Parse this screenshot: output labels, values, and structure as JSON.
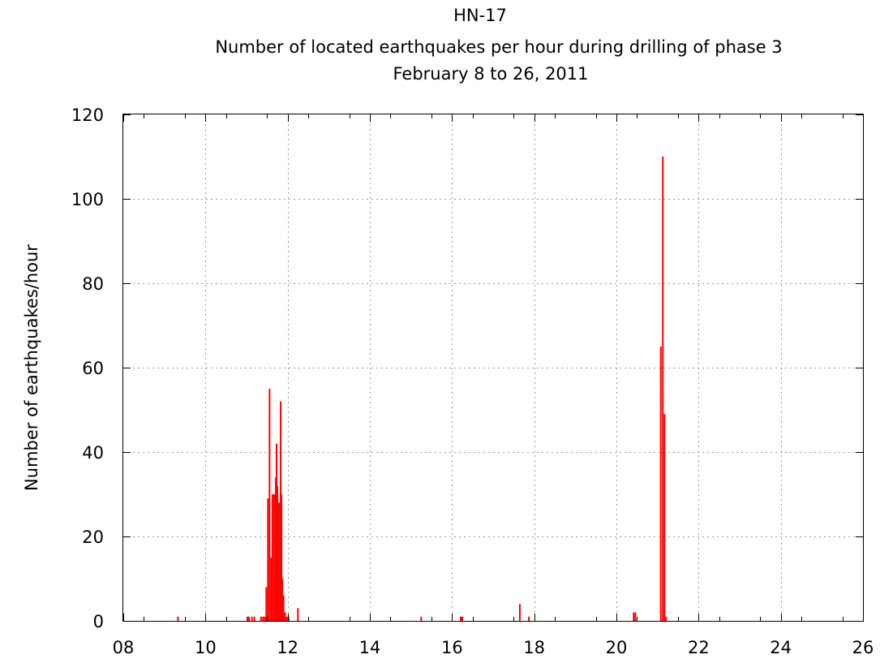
{
  "chart_data": {
    "type": "bar",
    "title": "HN-17",
    "subtitle": "Number of located earthquakes per hour during drilling of phase 3",
    "subtitle2": "February 8 to 26, 2011",
    "xlabel": "",
    "ylabel": "Number of earthquakes/hour",
    "xlim": [
      8,
      26
    ],
    "ylim": [
      0,
      120
    ],
    "grid": true,
    "bar_color": "#ff0000",
    "xticks": [
      {
        "value": 8,
        "label": "08"
      },
      {
        "value": 10,
        "label": "10"
      },
      {
        "value": 12,
        "label": "12"
      },
      {
        "value": 14,
        "label": "14"
      },
      {
        "value": 16,
        "label": "16"
      },
      {
        "value": 18,
        "label": "18"
      },
      {
        "value": 20,
        "label": "20"
      },
      {
        "value": 22,
        "label": "22"
      },
      {
        "value": 24,
        "label": "24"
      },
      {
        "value": 26,
        "label": "26"
      }
    ],
    "yticks": [
      {
        "value": 0,
        "label": "0"
      },
      {
        "value": 20,
        "label": "20"
      },
      {
        "value": 40,
        "label": "40"
      },
      {
        "value": 60,
        "label": "60"
      },
      {
        "value": 80,
        "label": "80"
      },
      {
        "value": 100,
        "label": "100"
      },
      {
        "value": 120,
        "label": "120"
      }
    ],
    "x": [
      9.33,
      11.02,
      11.06,
      11.13,
      11.19,
      11.35,
      11.4,
      11.44,
      11.48,
      11.52,
      11.56,
      11.6,
      11.63,
      11.67,
      11.71,
      11.73,
      11.75,
      11.77,
      11.79,
      11.81,
      11.83,
      11.85,
      11.87,
      11.9,
      11.94,
      11.98,
      12.02,
      12.25,
      15.25,
      16.21,
      16.25,
      17.65,
      17.87,
      20.42,
      20.46,
      21.08,
      21.13,
      21.17,
      21.21
    ],
    "values": [
      1,
      1,
      1,
      1,
      1,
      1,
      1,
      1,
      8,
      29,
      55,
      15,
      30,
      30,
      34,
      42,
      32,
      28,
      10,
      28,
      52,
      30,
      10,
      6,
      2,
      1,
      1,
      3,
      1,
      1,
      1,
      4,
      1,
      2,
      2,
      65,
      110,
      49,
      1
    ]
  }
}
